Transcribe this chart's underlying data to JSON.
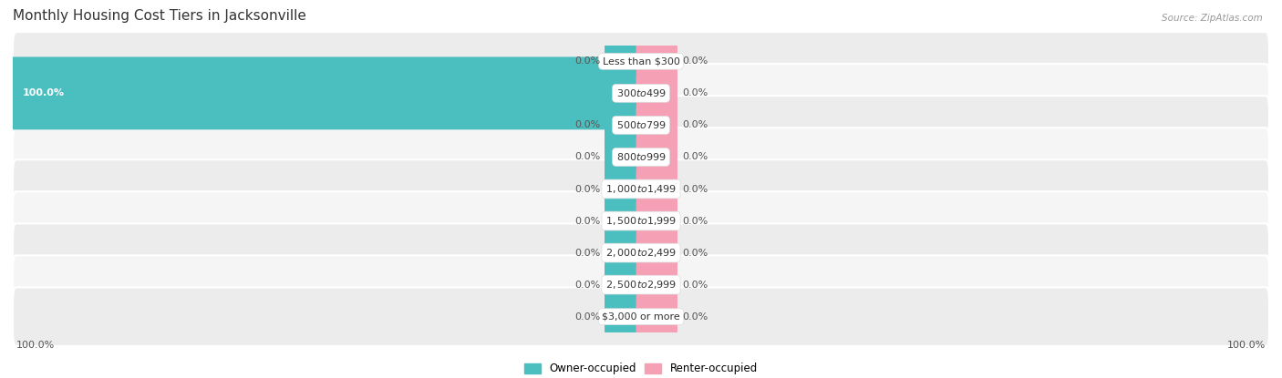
{
  "title": "Monthly Housing Cost Tiers in Jacksonville",
  "source": "Source: ZipAtlas.com",
  "categories": [
    "Less than $300",
    "$300 to $499",
    "$500 to $799",
    "$800 to $999",
    "$1,000 to $1,499",
    "$1,500 to $1,999",
    "$2,000 to $2,499",
    "$2,500 to $2,999",
    "$3,000 or more"
  ],
  "owner_values": [
    0.0,
    100.0,
    0.0,
    0.0,
    0.0,
    0.0,
    0.0,
    0.0,
    0.0
  ],
  "renter_values": [
    0.0,
    0.0,
    0.0,
    0.0,
    0.0,
    0.0,
    0.0,
    0.0,
    0.0
  ],
  "owner_color": "#4bbfbf",
  "renter_color": "#f5a0b5",
  "row_bg_even": "#ececec",
  "row_bg_odd": "#f5f5f5",
  "label_color": "#555555",
  "title_color": "#333333",
  "axis_max": 100.0,
  "stub_size": 5.0,
  "legend_owner": "Owner-occupied",
  "legend_renter": "Renter-occupied",
  "bottom_left_label": "100.0%",
  "bottom_right_label": "100.0%",
  "title_fontsize": 11,
  "label_fontsize": 8,
  "category_fontsize": 8,
  "source_fontsize": 7.5
}
